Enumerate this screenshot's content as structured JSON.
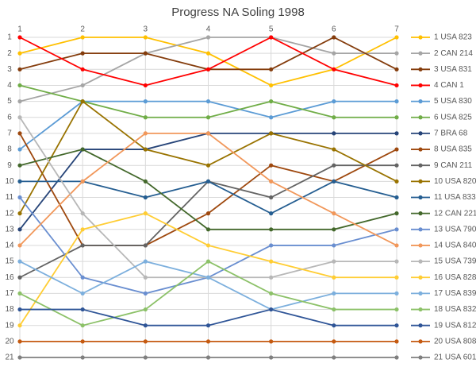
{
  "chart_data": {
    "type": "line",
    "title": "Progress NA Soling 1998",
    "x": [
      1,
      2,
      3,
      4,
      5,
      6,
      7
    ],
    "xlim": [
      1,
      7
    ],
    "xticks": [
      1,
      2,
      3,
      4,
      5,
      6,
      7
    ],
    "ylim": [
      1,
      21
    ],
    "y_reversed": true,
    "yticks": [
      1,
      2,
      3,
      4,
      5,
      6,
      7,
      8,
      9,
      10,
      11,
      12,
      13,
      14,
      15,
      16,
      17,
      18,
      19,
      20,
      21
    ],
    "grid": true,
    "legend": "right",
    "series": [
      {
        "name": "1 USA 823",
        "color": "#FFC000",
        "values": [
          2,
          1,
          1,
          2,
          4,
          3,
          1
        ]
      },
      {
        "name": "2 CAN 214",
        "color": "#A5A5A5",
        "values": [
          5,
          4,
          2,
          1,
          1,
          2,
          2
        ]
      },
      {
        "name": "3 USA 831",
        "color": "#843C0C",
        "values": [
          3,
          2,
          2,
          3,
          3,
          1,
          3
        ]
      },
      {
        "name": "4 CAN 1",
        "color": "#FF0000",
        "values": [
          1,
          3,
          4,
          3,
          1,
          3,
          4
        ]
      },
      {
        "name": "5 USA 830",
        "color": "#5B9BD5",
        "values": [
          8,
          5,
          5,
          5,
          6,
          5,
          5
        ]
      },
      {
        "name": "6 USA 825",
        "color": "#70AD47",
        "values": [
          4,
          5,
          6,
          6,
          5,
          6,
          6
        ]
      },
      {
        "name": "7 BRA 68",
        "color": "#264478",
        "values": [
          13,
          8,
          8,
          7,
          7,
          7,
          7
        ]
      },
      {
        "name": "8 USA 835",
        "color": "#9E480E",
        "values": [
          7,
          14,
          14,
          12,
          9,
          10,
          8
        ]
      },
      {
        "name": "9 CAN 211",
        "color": "#636363",
        "values": [
          16,
          14,
          14,
          10,
          11,
          9,
          9
        ]
      },
      {
        "name": "10 USA 820",
        "color": "#997300",
        "values": [
          12,
          5,
          8,
          9,
          7,
          8,
          10
        ]
      },
      {
        "name": "11 USA 833",
        "color": "#255E91",
        "values": [
          10,
          10,
          11,
          10,
          12,
          10,
          11
        ]
      },
      {
        "name": "12 CAN 221",
        "color": "#43682B",
        "values": [
          9,
          8,
          10,
          13,
          13,
          13,
          12
        ]
      },
      {
        "name": "13 USA 790",
        "color": "#698ED0",
        "values": [
          11,
          16,
          17,
          16,
          14,
          14,
          13
        ]
      },
      {
        "name": "14 USA 840",
        "color": "#F1975A",
        "values": [
          14,
          10,
          7,
          7,
          10,
          12,
          14
        ]
      },
      {
        "name": "15 USA 739",
        "color": "#B7B7B7",
        "values": [
          6,
          12,
          16,
          16,
          16,
          15,
          15
        ]
      },
      {
        "name": "16 USA 828",
        "color": "#FFCD33",
        "values": [
          19,
          13,
          12,
          14,
          15,
          16,
          16
        ]
      },
      {
        "name": "17 USA 839",
        "color": "#7CAFDD",
        "values": [
          15,
          17,
          15,
          16,
          18,
          17,
          17
        ]
      },
      {
        "name": "18 USA 832",
        "color": "#8CC168",
        "values": [
          17,
          19,
          18,
          15,
          17,
          18,
          18
        ]
      },
      {
        "name": "19 USA 812",
        "color": "#2F5597",
        "values": [
          18,
          18,
          19,
          19,
          18,
          19,
          19
        ]
      },
      {
        "name": "20 USA 808",
        "color": "#C55A11",
        "values": [
          20,
          20,
          20,
          20,
          20,
          20,
          20
        ]
      },
      {
        "name": "21 USA 601",
        "color": "#7F7F7F",
        "values": [
          21,
          21,
          21,
          21,
          21,
          21,
          21
        ]
      }
    ]
  }
}
